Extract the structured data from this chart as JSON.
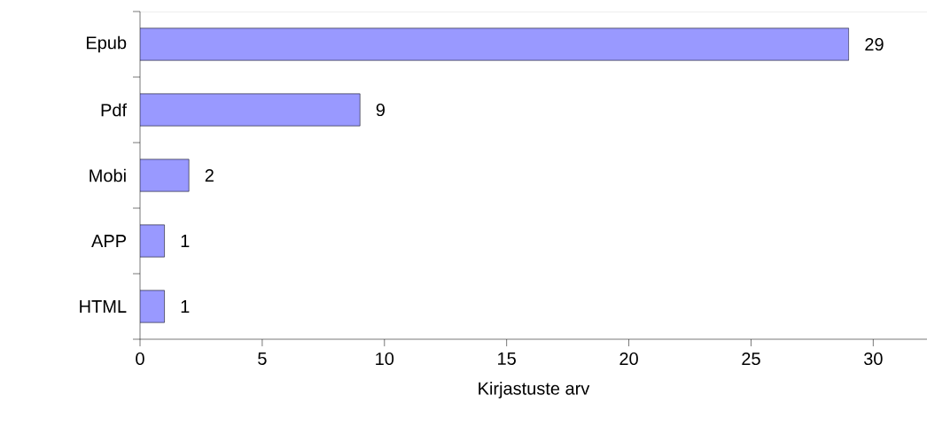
{
  "chart_data": {
    "type": "bar",
    "orientation": "horizontal",
    "xlabel": "Kirjastuste arv",
    "categories": [
      "Epub",
      "Pdf",
      "Mobi",
      "APP",
      "HTML"
    ],
    "values": [
      29,
      9,
      2,
      1,
      1
    ],
    "color": "#9999ff",
    "data_labels": true,
    "xlim": [
      0,
      32.2
    ],
    "xticks": [
      0,
      5,
      10,
      15,
      20,
      25,
      30
    ],
    "grid": false
  }
}
